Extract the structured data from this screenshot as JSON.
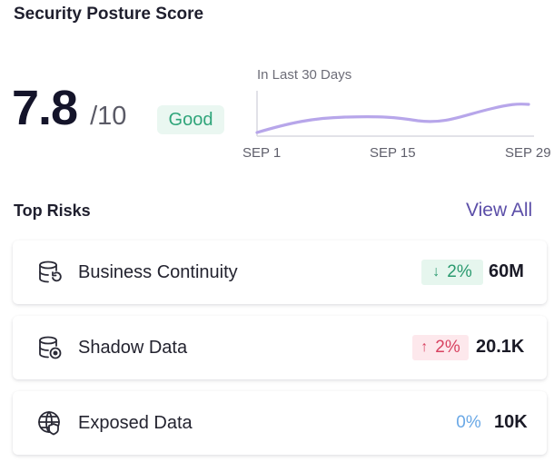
{
  "header": {
    "title": "Security Posture Score"
  },
  "score": {
    "value": "7.8",
    "max": "/10",
    "rating": "Good"
  },
  "trend": {
    "label": "In Last 30 Days",
    "ticks": [
      "SEP 1",
      "SEP 15",
      "SEP 29"
    ],
    "line_color": "#b7a6ea",
    "axis_color": "#d8d8e0"
  },
  "top_risks": {
    "title": "Top Risks",
    "view_all": "View All",
    "items": [
      {
        "name": "Business Continuity",
        "icon": "database-restore-icon",
        "delta": "2%",
        "delta_direction": "down",
        "delta_arrow": "↓",
        "value": "60M"
      },
      {
        "name": "Shadow Data",
        "icon": "database-eye-icon",
        "delta": "2%",
        "delta_direction": "up",
        "delta_arrow": "↑",
        "value": "20.1K"
      },
      {
        "name": "Exposed Data",
        "icon": "globe-shield-icon",
        "delta": "0%",
        "delta_direction": "flat",
        "delta_arrow": "",
        "value": "10K"
      }
    ]
  },
  "colors": {
    "good": "#2fa57a",
    "good_bg": "#eaf7f1",
    "bad": "#d84361",
    "bad_bg": "#fde8ec",
    "neutral": "#6aa8e6",
    "link": "#5b4ea8"
  }
}
